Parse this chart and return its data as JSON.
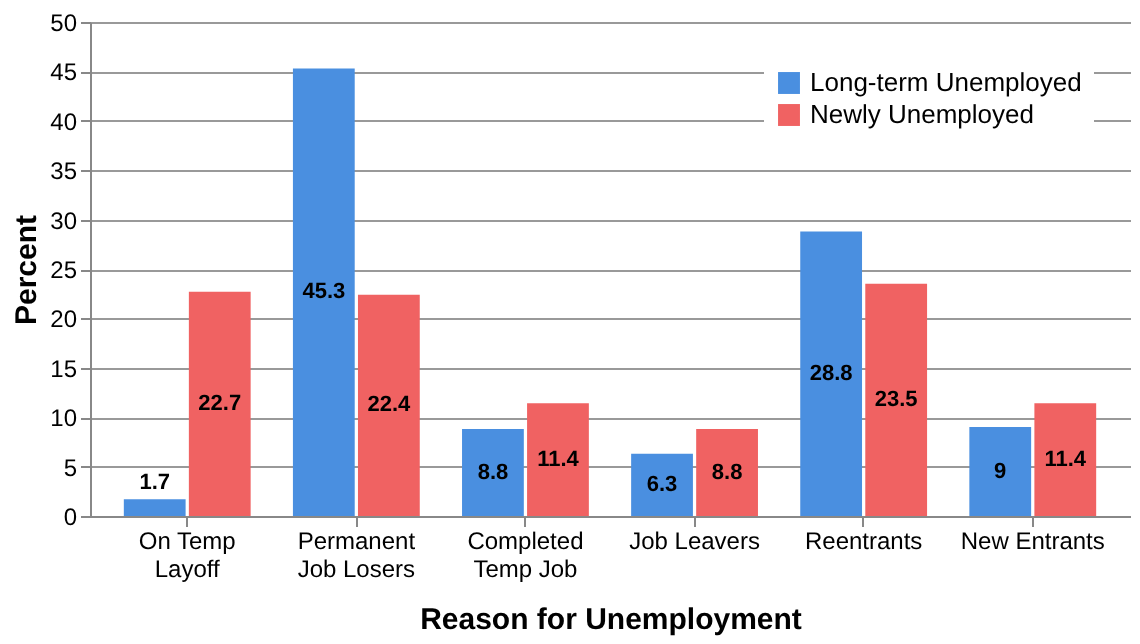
{
  "chart_data": {
    "type": "bar",
    "xlabel": "Reason for Unemployment",
    "ylabel": "Percent",
    "categories": [
      "On Temp\nLayoff",
      "Permanent\nJob Losers",
      "Completed\nTemp Job",
      "Job Leavers",
      "Reentrants",
      "New Entrants"
    ],
    "series": [
      {
        "name": "Long-term Unemployed",
        "color": "#4a8fe0",
        "values": [
          1.7,
          45.3,
          8.8,
          6.3,
          28.8,
          9
        ]
      },
      {
        "name": "Newly Unemployed",
        "color": "#f06262",
        "values": [
          22.7,
          22.4,
          11.4,
          8.8,
          23.5,
          11.4
        ]
      }
    ],
    "ylim": [
      0,
      50
    ],
    "yticks": [
      0,
      5,
      10,
      15,
      20,
      25,
      30,
      35,
      40,
      45,
      50
    ],
    "grid": "y",
    "legend": "top right",
    "data_labels": true
  }
}
